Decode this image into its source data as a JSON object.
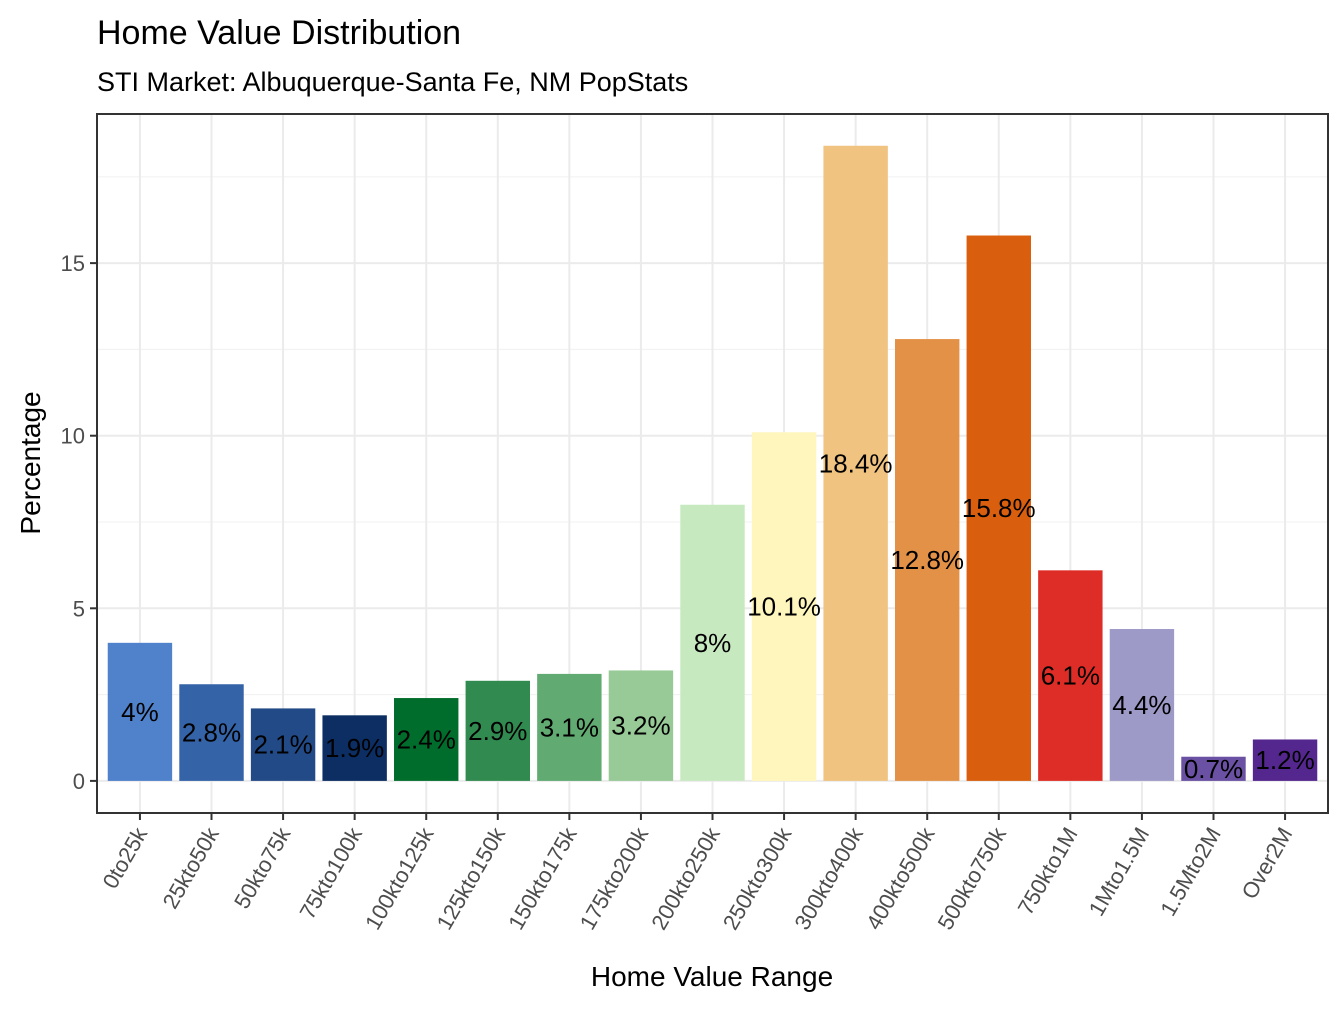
{
  "chart_data": {
    "type": "bar",
    "title": "Home Value Distribution",
    "subtitle": "STI Market: Albuquerque-Santa Fe, NM PopStats",
    "xlabel": "Home Value Range",
    "ylabel": "Percentage",
    "ylim": [
      -0.93,
      19.32
    ],
    "yticks": [
      0,
      5,
      10,
      15
    ],
    "grid": true,
    "legend": "none",
    "categories": [
      "0to25k",
      "25kto50k",
      "50kto75k",
      "75kto100k",
      "100kto125k",
      "125kto150k",
      "150kto175k",
      "175kto200k",
      "200kto250k",
      "250kto300k",
      "300kto400k",
      "400kto500k",
      "500kto750k",
      "750kto1M",
      "1Mto1.5M",
      "1.5Mto2M",
      "Over2M"
    ],
    "values": [
      4,
      2.8,
      2.1,
      1.9,
      2.4,
      2.9,
      3.1,
      3.2,
      8,
      10.1,
      18.4,
      12.8,
      15.8,
      6.1,
      4.4,
      0.7,
      1.2
    ],
    "data_labels": [
      "4%",
      "2.8%",
      "2.1%",
      "1.9%",
      "2.4%",
      "2.9%",
      "3.1%",
      "3.2%",
      "8%",
      "10.1%",
      "18.4%",
      "12.8%",
      "15.8%",
      "6.1%",
      "4.4%",
      "0.7%",
      "1.2%"
    ],
    "colors": [
      "#4F82CB",
      "#3563A7",
      "#224A87",
      "#0C2E63",
      "#006D2C",
      "#318B51",
      "#61AA71",
      "#97CA97",
      "#C7E9C0",
      "#FFF6BE",
      "#F0C380",
      "#E39147",
      "#D95F0E",
      "#DE2D26",
      "#9E9AC8",
      "#6A51A3",
      "#54278F"
    ]
  }
}
